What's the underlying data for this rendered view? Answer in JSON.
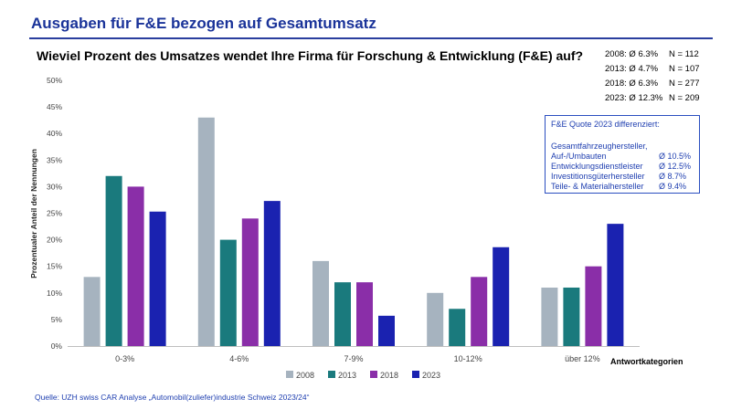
{
  "title": "Ausgaben für F&E bezogen auf Gesamtumsatz",
  "question": "Wieviel Prozent des Umsatzes wendet Ihre Firma für Forschung & Entwicklung (F&E) auf?",
  "stats": [
    {
      "label": "2008: Ø 6.3%",
      "n": "N = 112"
    },
    {
      "label": "2013: Ø 4.7%",
      "n": "N = 107"
    },
    {
      "label": "2018: Ø 6.3%",
      "n": "N = 277"
    },
    {
      "label": "2023: Ø 12.3%",
      "n": "N = 209"
    }
  ],
  "box": {
    "title": "F&E Quote 2023 differenziert:",
    "rows": [
      {
        "label": "Gesamtfahrzeughersteller,",
        "value": ""
      },
      {
        "label": "Auf-/Umbauten",
        "value": "Ø 10.5%"
      },
      {
        "label": "Entwicklungsdienstleister",
        "value": "Ø 12.5%"
      },
      {
        "label": "Investitionsgüterhersteller",
        "value": "Ø 8.7%"
      },
      {
        "label": "Teile- & Materialhersteller",
        "value": "Ø 9.4%"
      }
    ]
  },
  "source": "Quelle: UZH swiss CAR Analyse „Automobil(zuliefer)industrie Schweiz 2023/24“",
  "chart_data": {
    "type": "bar",
    "categories": [
      "0-3%",
      "4-6%",
      "7-9%",
      "10-12%",
      "über 12%"
    ],
    "series": [
      {
        "name": "2008",
        "color": "#a6b3bf",
        "values": [
          13,
          43,
          16,
          10,
          11
        ]
      },
      {
        "name": "2013",
        "color": "#1a7a7d",
        "values": [
          32,
          20,
          12,
          7,
          11
        ]
      },
      {
        "name": "2018",
        "color": "#8a2ea8",
        "values": [
          30,
          24,
          12,
          13,
          15
        ]
      },
      {
        "name": "2023",
        "color": "#1a22b0",
        "values": [
          25.3,
          27.3,
          5.7,
          18.6,
          23
        ]
      }
    ],
    "ylim": [
      0,
      50
    ],
    "yticks": [
      "0%",
      "5%",
      "10%",
      "15%",
      "20%",
      "25%",
      "30%",
      "35%",
      "40%",
      "45%",
      "50%"
    ],
    "ylabel": "Prozentualer Anteil der Nennungen",
    "xlabel": "Antwortkategorien",
    "legend": "bottom-center"
  }
}
